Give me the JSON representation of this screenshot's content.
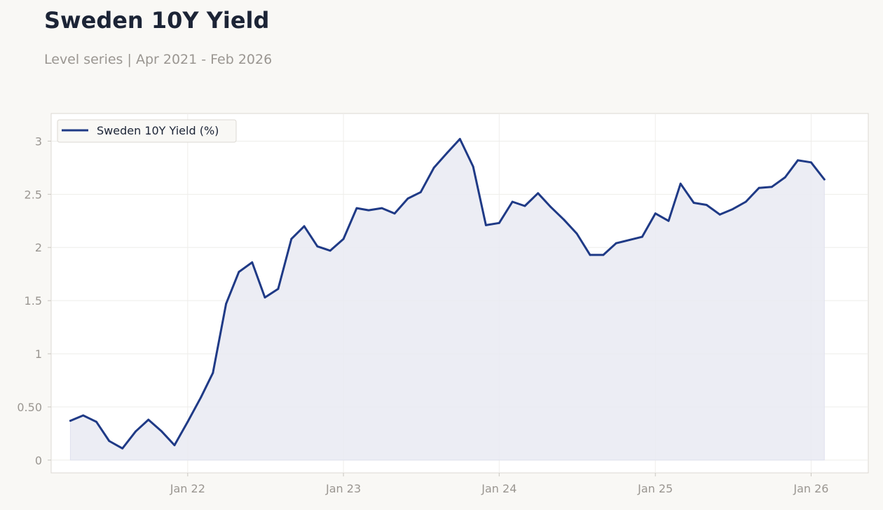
{
  "title": "Sweden 10Y Yield",
  "subtitle": "Level series | Apr 2021 - Feb 2026",
  "colors": {
    "line": "#1f3a86",
    "fill": "#e9eaf2",
    "background": "#f9f8f5",
    "plot_background": "#ffffff"
  },
  "chart_data": {
    "type": "area",
    "title": "Sweden 10Y Yield",
    "subtitle": "Level series | Apr 2021 - Feb 2026",
    "xlabel": "",
    "ylabel": "",
    "ylim": [
      -0.12,
      3.26
    ],
    "xlim": [
      "2021-02-15",
      "2026-05-15"
    ],
    "grid": true,
    "legend_position": "top-left",
    "y_ticks": [
      {
        "value": 0,
        "label": "0"
      },
      {
        "value": 0.5,
        "label": "0.50"
      },
      {
        "value": 1,
        "label": "1"
      },
      {
        "value": 1.5,
        "label": "1.5"
      },
      {
        "value": 2,
        "label": "2"
      },
      {
        "value": 2.5,
        "label": "2.5"
      },
      {
        "value": 3,
        "label": "3"
      }
    ],
    "x_ticks": [
      {
        "date": "2022-01-01",
        "label": "Jan 22"
      },
      {
        "date": "2023-01-01",
        "label": "Jan 23"
      },
      {
        "date": "2024-01-01",
        "label": "Jan 24"
      },
      {
        "date": "2025-01-01",
        "label": "Jan 25"
      },
      {
        "date": "2026-01-01",
        "label": "Jan 26"
      }
    ],
    "series": [
      {
        "name": "Sweden 10Y Yield (%)",
        "x": [
          "2021-04",
          "2021-05",
          "2021-06",
          "2021-07",
          "2021-08",
          "2021-09",
          "2021-10",
          "2021-11",
          "2021-12",
          "2022-01",
          "2022-02",
          "2022-03",
          "2022-04",
          "2022-05",
          "2022-06",
          "2022-07",
          "2022-08",
          "2022-09",
          "2022-10",
          "2022-11",
          "2022-12",
          "2023-01",
          "2023-02",
          "2023-03",
          "2023-04",
          "2023-05",
          "2023-06",
          "2023-07",
          "2023-08",
          "2023-09",
          "2023-10",
          "2023-11",
          "2023-12",
          "2024-01",
          "2024-02",
          "2024-03",
          "2024-04",
          "2024-05",
          "2024-06",
          "2024-07",
          "2024-08",
          "2024-09",
          "2024-10",
          "2024-11",
          "2024-12",
          "2025-01",
          "2025-02",
          "2025-03",
          "2025-04",
          "2025-05",
          "2025-06",
          "2025-07",
          "2025-08",
          "2025-09",
          "2025-10",
          "2025-11",
          "2025-12",
          "2026-01",
          "2026-02"
        ],
        "values": [
          0.37,
          0.42,
          0.36,
          0.18,
          0.11,
          0.27,
          0.38,
          0.27,
          0.14,
          0.36,
          0.59,
          0.82,
          1.47,
          1.77,
          1.86,
          1.53,
          1.61,
          2.08,
          2.2,
          2.01,
          1.97,
          2.08,
          2.37,
          2.35,
          2.37,
          2.32,
          2.46,
          2.52,
          2.75,
          2.89,
          3.02,
          2.76,
          2.21,
          2.23,
          2.43,
          2.39,
          2.51,
          2.38,
          2.26,
          2.13,
          1.93,
          1.93,
          2.04,
          2.07,
          2.1,
          2.32,
          2.25,
          2.6,
          2.42,
          2.4,
          2.31,
          2.36,
          2.43,
          2.56,
          2.57,
          2.66,
          2.82,
          2.8,
          2.64
        ]
      }
    ]
  }
}
